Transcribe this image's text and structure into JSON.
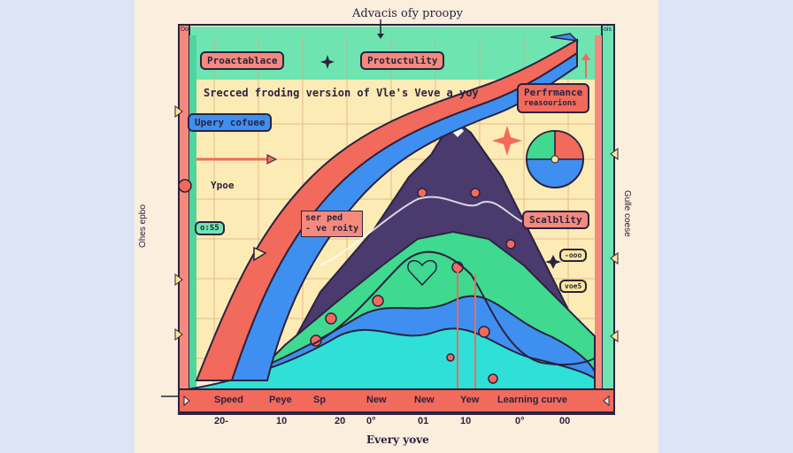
{
  "title": "Advacis ofy proopy",
  "labels": {
    "proactablace": "Proactablace",
    "productulity": "Protuctulity",
    "banner": "Srecced froding version of Vle's Veve a yoy",
    "performance": "Perfrmance",
    "performance_sub": "reasourions",
    "upery": "Upery cofuee",
    "ypoe": "Ypoe",
    "ospd_chip": "o:S5",
    "speed_note_1": "ser ped",
    "speed_note_2": "- ve roity",
    "scalability": "Scalblity",
    "chip_right_1": "-ooo",
    "chip_right_2": "voe5",
    "left_axis": "Ohes epbo",
    "right_axis": "Gulle coese",
    "corner_tl": "Do",
    "corner_tr": "ois"
  },
  "bottom_bar": {
    "items": [
      "Speed",
      "Peye",
      "Sp",
      "New",
      "New",
      "Yew",
      "Learning curve"
    ]
  },
  "x_ticks": [
    "20-",
    "10",
    "20",
    "0°",
    "01",
    "10",
    "0°",
    "00"
  ],
  "x_title": "Every yove",
  "colors": {
    "red": "#f26a5b",
    "green": "#3fd98f",
    "blue": "#3f8ff0",
    "cyan": "#2ee0d8",
    "purple": "#4a3a6e",
    "yellow": "#fbe79a",
    "ink": "#2b2340"
  }
}
